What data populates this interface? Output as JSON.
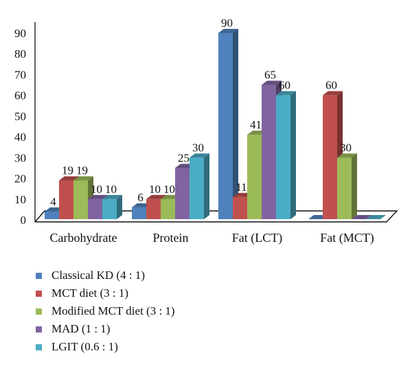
{
  "chart_data": {
    "type": "bar",
    "style": "3d-clustered-column",
    "title": "",
    "xlabel": "",
    "ylabel": "",
    "ylim": [
      0,
      90
    ],
    "yticks": [
      0,
      10,
      20,
      30,
      40,
      50,
      60,
      70,
      80,
      90
    ],
    "grid": false,
    "legend_position": "bottom-left",
    "categories": [
      "Carbohydrate",
      "Protein",
      "Fat (LCT)",
      "Fat (MCT)"
    ],
    "series": [
      {
        "name": "Classical KD (4:1)",
        "color": "#4f81bd",
        "values": [
          4,
          6,
          90,
          0
        ],
        "labels": [
          "4",
          "6",
          "90",
          ""
        ]
      },
      {
        "name": "MCT diet (3:1)",
        "color": "#c0504d",
        "values": [
          19,
          10,
          11,
          60
        ],
        "labels": [
          "19",
          "10",
          "11",
          "60"
        ]
      },
      {
        "name": "Modified MCT diet (3:1)",
        "color": "#9bbb59",
        "values": [
          19,
          10,
          41,
          30
        ],
        "labels": [
          "19",
          "10",
          "41",
          "30"
        ]
      },
      {
        "name": "MAD (1:1)",
        "color": "#8064a2",
        "values": [
          10,
          25,
          65,
          0
        ],
        "labels": [
          "10",
          "25",
          "65",
          ""
        ]
      },
      {
        "name": "LGIT (0.6:1)",
        "color": "#4bacc6",
        "values": [
          10,
          30,
          60,
          0
        ],
        "labels": [
          "10",
          "30",
          "60",
          ""
        ]
      }
    ]
  }
}
